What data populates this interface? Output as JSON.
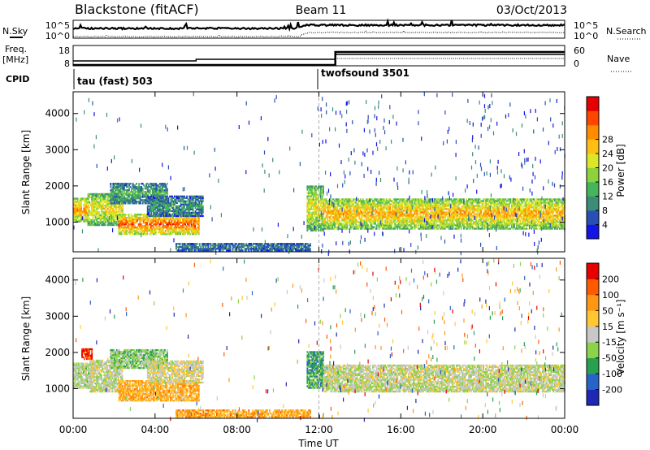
{
  "header": {
    "station": "Blackstone (fitACF)",
    "beam": "Beam 11",
    "date": "03/Oct/2013"
  },
  "strips": {
    "nsky_label": "N.Sky",
    "nsearch_label": "N.Search",
    "noise_ticks": [
      "10^5",
      "10^0"
    ],
    "freq_label_1": "Freq.",
    "freq_label_2": "[MHz]",
    "freq_ticks": [
      "18",
      "8"
    ],
    "nave_label": "Nave",
    "nave_ticks": [
      "60",
      "0"
    ],
    "cpid_label": "CPID",
    "cpid_entries": [
      "tau (fast) 503",
      "twofsound 3501"
    ]
  },
  "chart_data": [
    {
      "type": "heatmap",
      "name": "power",
      "xlabel": "Time UT",
      "ylabel": "Slant Range [km]",
      "x_ticks": [
        "00:00",
        "04:00",
        "08:00",
        "12:00",
        "16:00",
        "20:00",
        "00:00"
      ],
      "xlim_hours": [
        0,
        24
      ],
      "ylim": [
        180,
        4600
      ],
      "y_ticks": [
        1000,
        2000,
        3000,
        4000
      ],
      "colorbar_label": "Power [dB]",
      "colorbar_ticks": [
        4,
        8,
        12,
        16,
        20,
        24,
        28
      ],
      "colorbar_colors": [
        "#1414e6",
        "#2850b4",
        "#3c8c78",
        "#46b45a",
        "#8cd23c",
        "#dce628",
        "#ffbe14",
        "#ff8c00",
        "#ff4600",
        "#e60000"
      ],
      "bands": [
        {
          "t0": 0.0,
          "t1": 0.7,
          "r0": 1000,
          "r1": 1650,
          "level": 0.75
        },
        {
          "t0": 0.7,
          "t1": 2.4,
          "r0": 900,
          "r1": 1800,
          "level": 0.6
        },
        {
          "t0": 1.8,
          "t1": 4.6,
          "r0": 1500,
          "r1": 2050,
          "level": 0.35
        },
        {
          "t0": 2.2,
          "t1": 6.1,
          "r0": 650,
          "r1": 1200,
          "level": 0.85
        },
        {
          "t0": 3.6,
          "t1": 6.3,
          "r0": 1150,
          "r1": 1700,
          "level": 0.3
        },
        {
          "t0": 5.0,
          "t1": 11.6,
          "r0": 200,
          "r1": 400,
          "level": 0.25
        },
        {
          "t0": 11.4,
          "t1": 12.2,
          "r0": 750,
          "r1": 2000,
          "level": 0.6
        },
        {
          "t0": 12.2,
          "t1": 24.0,
          "r0": 800,
          "r1": 1650,
          "level": 0.7
        }
      ]
    },
    {
      "type": "heatmap",
      "name": "velocity",
      "xlabel": "Time UT",
      "ylabel": "Slant Range [km]",
      "x_ticks": [
        "00:00",
        "04:00",
        "08:00",
        "12:00",
        "16:00",
        "20:00",
        "00:00"
      ],
      "xlim_hours": [
        0,
        24
      ],
      "ylim": [
        180,
        4600
      ],
      "y_ticks": [
        1000,
        2000,
        3000,
        4000
      ],
      "colorbar_label": "Velocity [m s⁻¹]",
      "colorbar_ticks": [
        "200",
        "100",
        "50",
        "15",
        "-15",
        "-50",
        "-100",
        "-200"
      ],
      "colorbar_colors": [
        "#1e28b4",
        "#2864c8",
        "#28a050",
        "#8cd24a",
        "#c8c8c8",
        "#ffc832",
        "#ff9614",
        "#ff5a00",
        "#e60000"
      ],
      "bands": [
        {
          "t0": 0.0,
          "t1": 0.8,
          "r0": 1000,
          "r1": 1700,
          "level": 0.45
        },
        {
          "t0": 0.4,
          "t1": 0.9,
          "r0": 1800,
          "r1": 2100,
          "level": 0.9
        },
        {
          "t0": 0.8,
          "t1": 2.4,
          "r0": 900,
          "r1": 1800,
          "level": 0.48
        },
        {
          "t0": 1.8,
          "t1": 4.6,
          "r0": 1550,
          "r1": 2050,
          "level": 0.4
        },
        {
          "t0": 2.2,
          "t1": 6.1,
          "r0": 650,
          "r1": 1200,
          "level": 0.66
        },
        {
          "t0": 3.6,
          "t1": 6.3,
          "r0": 1150,
          "r1": 1750,
          "level": 0.52
        },
        {
          "t0": 5.0,
          "t1": 11.6,
          "r0": 200,
          "r1": 400,
          "level": 0.68
        },
        {
          "t0": 11.4,
          "t1": 12.2,
          "r0": 1000,
          "r1": 2000,
          "level": 0.3
        },
        {
          "t0": 12.2,
          "t1": 24.0,
          "r0": 900,
          "r1": 1650,
          "level": 0.48
        }
      ]
    }
  ]
}
